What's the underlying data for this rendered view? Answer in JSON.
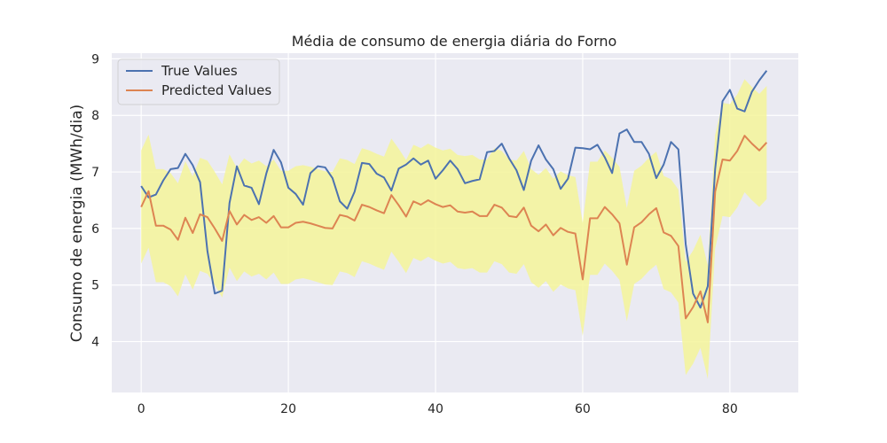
{
  "chart_data": {
    "type": "line",
    "title": "Média de consumo de energia diária do Forno",
    "xlabel": "",
    "ylabel": "Consumo de energia (MWh/dia)",
    "xlim": [
      -4,
      89.3
    ],
    "ylim": [
      3.1,
      9.1
    ],
    "x_ticks": [
      0,
      20,
      40,
      60,
      80
    ],
    "y_ticks": [
      4,
      5,
      6,
      7,
      8,
      9
    ],
    "grid": true,
    "legend_position": "top-left",
    "x": [
      0,
      1,
      2,
      3,
      4,
      5,
      6,
      7,
      8,
      9,
      10,
      11,
      12,
      13,
      14,
      15,
      16,
      17,
      18,
      19,
      20,
      21,
      22,
      23,
      24,
      25,
      26,
      27,
      28,
      29,
      30,
      31,
      32,
      33,
      34,
      35,
      36,
      37,
      38,
      39,
      40,
      41,
      42,
      43,
      44,
      45,
      46,
      47,
      48,
      49,
      50,
      51,
      52,
      53,
      54,
      55,
      56,
      57,
      58,
      59,
      60,
      61,
      62,
      63,
      64,
      65,
      66,
      67,
      68,
      69,
      70,
      71,
      72,
      73,
      74,
      75,
      76,
      77,
      78,
      79,
      80,
      81,
      82,
      83,
      84,
      85
    ],
    "series": [
      {
        "name": "True Values",
        "color": "#4c72b0",
        "values": [
          6.75,
          6.55,
          6.6,
          6.85,
          7.05,
          7.07,
          7.32,
          7.12,
          6.82,
          5.6,
          4.85,
          4.9,
          6.45,
          7.1,
          6.76,
          6.72,
          6.43,
          6.97,
          7.39,
          7.17,
          6.72,
          6.61,
          6.42,
          6.98,
          7.1,
          7.08,
          6.89,
          6.48,
          6.35,
          6.65,
          7.16,
          7.14,
          6.97,
          6.9,
          6.67,
          7.06,
          7.13,
          7.24,
          7.13,
          7.2,
          6.88,
          7.03,
          7.2,
          7.05,
          6.8,
          6.84,
          6.87,
          7.35,
          7.37,
          7.5,
          7.24,
          7.03,
          6.68,
          7.2,
          7.47,
          7.22,
          7.05,
          6.7,
          6.88,
          7.43,
          7.42,
          7.4,
          7.48,
          7.26,
          6.98,
          7.68,
          7.75,
          7.53,
          7.53,
          7.32,
          6.89,
          7.13,
          7.53,
          7.4,
          5.72,
          4.85,
          4.6,
          4.98,
          7.05,
          8.25,
          8.45,
          8.12,
          8.07,
          8.42,
          8.62,
          8.79
        ]
      },
      {
        "name": "Predicted Values",
        "color": "#dd8452",
        "values": [
          6.38,
          6.66,
          6.05,
          6.05,
          5.98,
          5.8,
          6.19,
          5.92,
          6.25,
          6.2,
          6.0,
          5.78,
          6.31,
          6.07,
          6.24,
          6.15,
          6.2,
          6.1,
          6.22,
          6.02,
          6.02,
          6.1,
          6.12,
          6.09,
          6.05,
          6.01,
          6.0,
          6.24,
          6.21,
          6.14,
          6.42,
          6.38,
          6.32,
          6.27,
          6.59,
          6.41,
          6.21,
          6.48,
          6.42,
          6.5,
          6.43,
          6.38,
          6.41,
          6.3,
          6.28,
          6.3,
          6.22,
          6.22,
          6.42,
          6.37,
          6.22,
          6.2,
          6.37,
          6.05,
          5.95,
          6.07,
          5.88,
          6.01,
          5.94,
          5.91,
          5.1,
          6.18,
          6.18,
          6.38,
          6.25,
          6.09,
          5.36,
          6.02,
          6.11,
          6.25,
          6.36,
          5.93,
          5.87,
          5.69,
          4.41,
          4.61,
          4.89,
          4.34,
          6.65,
          7.22,
          7.2,
          7.37,
          7.64,
          7.5,
          7.38,
          7.52
        ]
      }
    ],
    "confidence_band": {
      "color": "#f5f59a",
      "half_width": 1.0
    }
  }
}
